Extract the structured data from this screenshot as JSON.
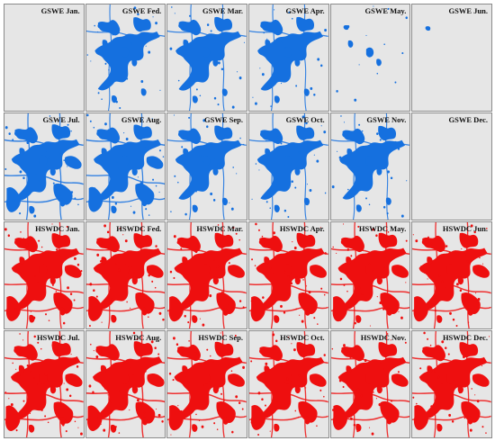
{
  "figure": {
    "palette": {
      "gswe": "#1570df",
      "hswdc": "#ee0f0f",
      "background": "#e6e6e6",
      "border": "#8a8a8a"
    },
    "panels": [
      {
        "label": "GSWE Jan.",
        "product": "gswe",
        "coverage": 0.02
      },
      {
        "label": "GSWE Fed.",
        "product": "gswe",
        "coverage": 0.55
      },
      {
        "label": "GSWE Mar.",
        "product": "gswe",
        "coverage": 0.6
      },
      {
        "label": "GSWE Apr.",
        "product": "gswe",
        "coverage": 0.6
      },
      {
        "label": "GSWE May.",
        "product": "gswe",
        "coverage": 0.3
      },
      {
        "label": "GSWE Jun.",
        "product": "gswe",
        "coverage": 0.1
      },
      {
        "label": "GSWE Jul.",
        "product": "gswe",
        "coverage": 0.85
      },
      {
        "label": "GSWE Aug.",
        "product": "gswe",
        "coverage": 0.8
      },
      {
        "label": "GSWE Sep.",
        "product": "gswe",
        "coverage": 0.65
      },
      {
        "label": "GSWE Oct.",
        "product": "gswe",
        "coverage": 0.65
      },
      {
        "label": "GSWE Nov.",
        "product": "gswe",
        "coverage": 0.6
      },
      {
        "label": "GSWE Dec.",
        "product": "gswe",
        "coverage": 0
      },
      {
        "label": "HSWDC Jan.",
        "product": "hswdc",
        "coverage": 0.85
      },
      {
        "label": "HSWDC Fed.",
        "product": "hswdc",
        "coverage": 0.85
      },
      {
        "label": "HSWDC Mar.",
        "product": "hswdc",
        "coverage": 0.9
      },
      {
        "label": "HSWDC Apr.",
        "product": "hswdc",
        "coverage": 0.9
      },
      {
        "label": "HSWDC May.",
        "product": "hswdc",
        "coverage": 0.9
      },
      {
        "label": "HSWDC Jun.",
        "product": "hswdc",
        "coverage": 0.9
      },
      {
        "label": "HSWDC Jul.",
        "product": "hswdc",
        "coverage": 1.0
      },
      {
        "label": "HSWDC Aug.",
        "product": "hswdc",
        "coverage": 1.0
      },
      {
        "label": "HSWDC Sep.",
        "product": "hswdc",
        "coverage": 0.9
      },
      {
        "label": "HSWDC Oct.",
        "product": "hswdc",
        "coverage": 0.85
      },
      {
        "label": "HSWDC Nov.",
        "product": "hswdc",
        "coverage": 0.85
      },
      {
        "label": "HSWDC Dec.",
        "product": "hswdc",
        "coverage": 0.85
      }
    ]
  }
}
